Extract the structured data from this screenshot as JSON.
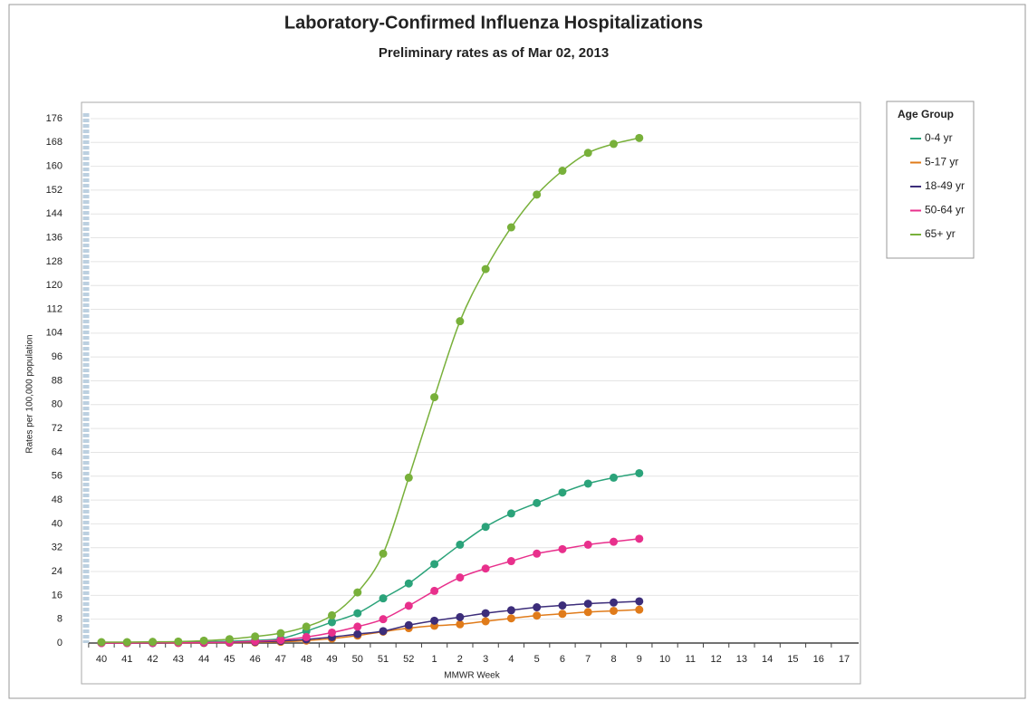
{
  "chart_data": {
    "type": "line",
    "title": "Laboratory-Confirmed Influenza Hospitalizations",
    "subtitle": "Preliminary rates as of Mar 02, 2013",
    "x_label": "MMWR Week",
    "y_label": "Rates per 100,000 population",
    "legend_title": "Age Group",
    "legend_position": "right",
    "grid": true,
    "categories": [
      "40",
      "41",
      "42",
      "43",
      "44",
      "45",
      "46",
      "47",
      "48",
      "49",
      "50",
      "51",
      "52",
      "1",
      "2",
      "3",
      "4",
      "5",
      "6",
      "7",
      "8",
      "9",
      "10",
      "11",
      "12",
      "13",
      "14",
      "15",
      "16",
      "17"
    ],
    "ylim": [
      0,
      180
    ],
    "yticks": [
      0,
      8,
      16,
      24,
      32,
      40,
      48,
      56,
      64,
      72,
      80,
      88,
      96,
      104,
      112,
      120,
      128,
      136,
      144,
      152,
      160,
      168,
      176
    ],
    "series": [
      {
        "name": "0-4 yr",
        "color": "#2ba37a",
        "values": [
          0.1,
          0.2,
          0.2,
          0.3,
          0.4,
          0.6,
          0.9,
          1.5,
          4,
          7,
          10,
          15,
          20,
          26.5,
          33,
          39,
          43.5,
          47,
          50.5,
          53.5,
          55.5,
          57,
          null,
          null,
          null,
          null,
          null,
          null,
          null,
          null
        ]
      },
      {
        "name": "5-17 yr",
        "color": "#e07b1a",
        "values": [
          0,
          0,
          0,
          0,
          0,
          0.1,
          0.2,
          0.4,
          0.8,
          1.5,
          2.5,
          3.8,
          5,
          5.8,
          6.3,
          7.3,
          8.3,
          9.2,
          9.8,
          10.4,
          10.8,
          11.2,
          null,
          null,
          null,
          null,
          null,
          null,
          null,
          null
        ]
      },
      {
        "name": "18-49 yr",
        "color": "#3c2d7a",
        "values": [
          0,
          0,
          0,
          0.1,
          0.1,
          0.2,
          0.4,
          0.7,
          1.2,
          2,
          3,
          4,
          6,
          7.5,
          8.7,
          10,
          11,
          12,
          12.6,
          13.2,
          13.6,
          14,
          null,
          null,
          null,
          null,
          null,
          null,
          null,
          null
        ]
      },
      {
        "name": "50-64 yr",
        "color": "#e8308c",
        "values": [
          0,
          0,
          0.1,
          0.1,
          0.2,
          0.3,
          0.6,
          1,
          2,
          3.5,
          5.5,
          8,
          12.5,
          17.5,
          22,
          25,
          27.5,
          30,
          31.5,
          33,
          34,
          35,
          null,
          null,
          null,
          null,
          null,
          null,
          null,
          null
        ]
      },
      {
        "name": "65+ yr",
        "color": "#78b03a",
        "values": [
          0.3,
          0.3,
          0.4,
          0.5,
          0.8,
          1.3,
          2.2,
          3.3,
          5.5,
          9.3,
          17,
          30,
          55.5,
          82.5,
          108,
          125.5,
          139.5,
          150.5,
          158.5,
          164.5,
          167.5,
          169.5,
          null,
          null,
          null,
          null,
          null,
          null,
          null,
          null
        ]
      }
    ]
  }
}
